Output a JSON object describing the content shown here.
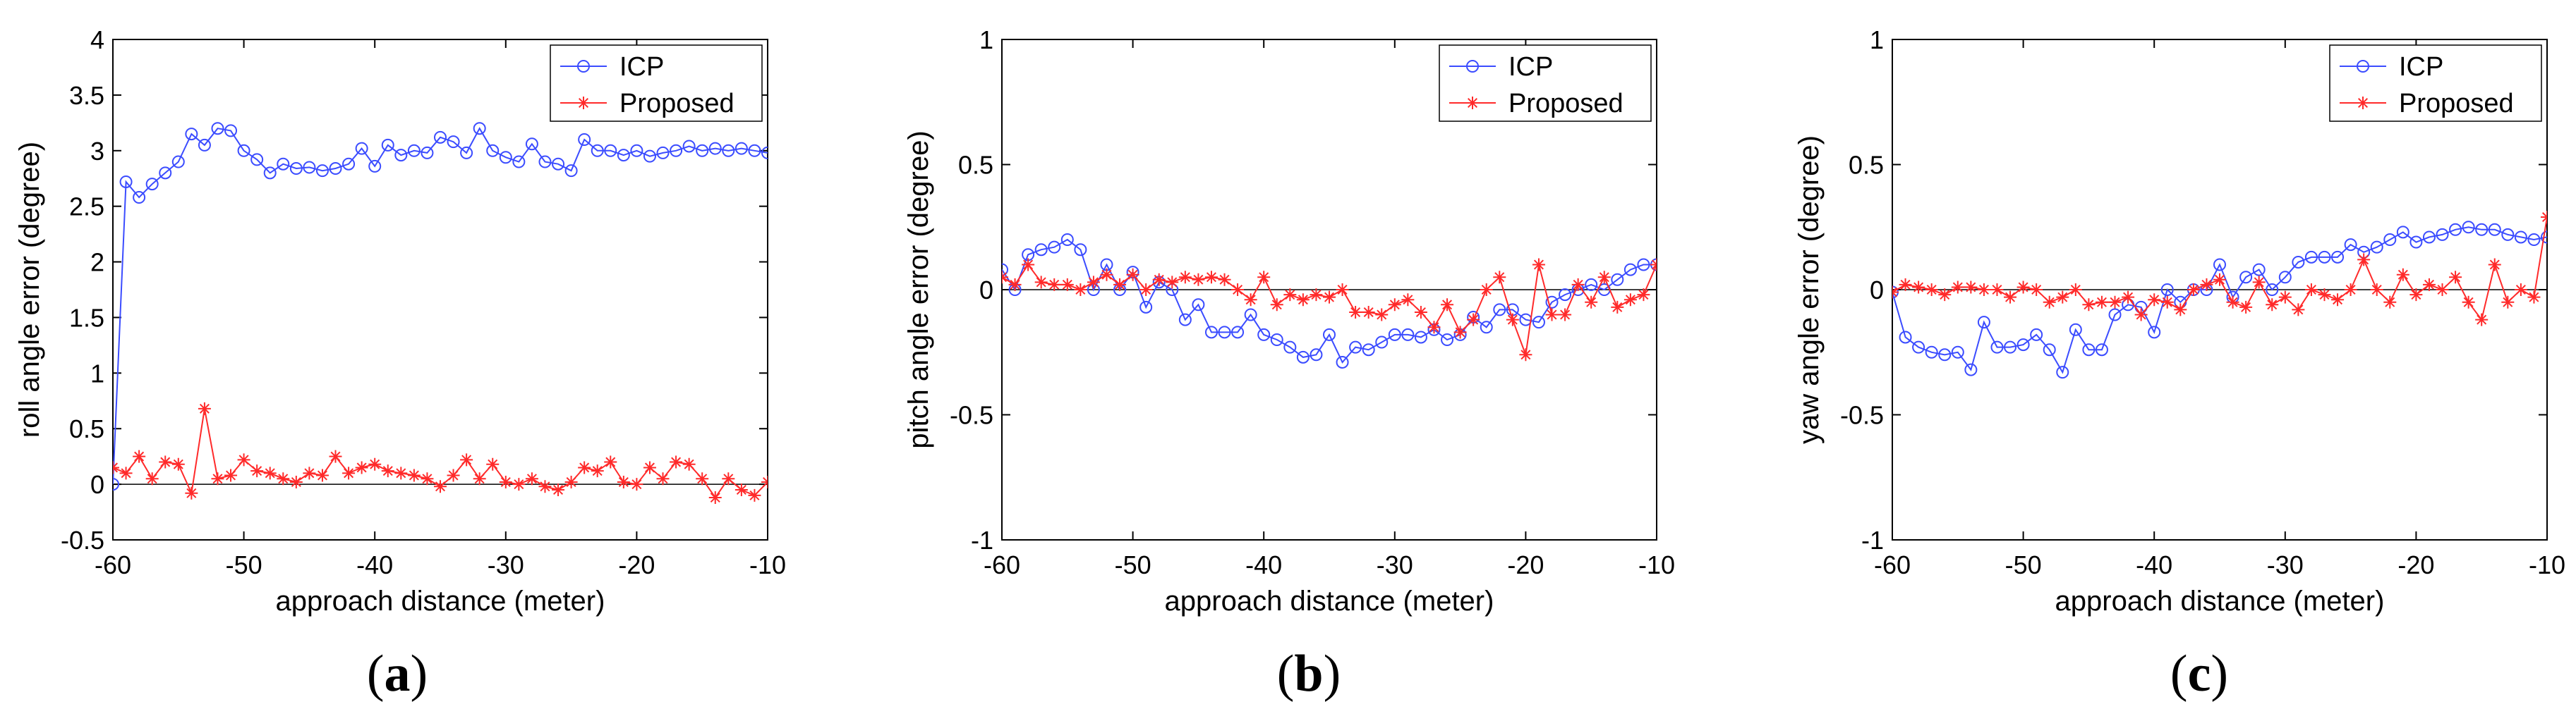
{
  "chart_data": [
    {
      "type": "line",
      "panel": "a",
      "xlabel": "approach distance (meter)",
      "ylabel": "roll angle error (degree)",
      "xlim": [
        -60,
        -10
      ],
      "ylim": [
        -0.5,
        4
      ],
      "xticks": [
        -60,
        -50,
        -40,
        -30,
        -20,
        -10
      ],
      "yticks": [
        -0.5,
        0,
        0.5,
        1,
        1.5,
        2,
        2.5,
        3,
        3.5,
        4
      ],
      "legend": "top-right",
      "zero_line": true,
      "x": [
        -60,
        -59,
        -58,
        -57,
        -56,
        -55,
        -54,
        -53,
        -52,
        -51,
        -50,
        -49,
        -48,
        -47,
        -46,
        -45,
        -44,
        -43,
        -42,
        -41,
        -40,
        -39,
        -38,
        -37,
        -36,
        -35,
        -34,
        -33,
        -32,
        -31,
        -30,
        -29,
        -28,
        -27,
        -26,
        -25,
        -24,
        -23,
        -22,
        -21,
        -20,
        -19,
        -18,
        -17,
        -16,
        -15,
        -14,
        -13,
        -12,
        -11,
        -10
      ],
      "series": [
        {
          "name": "ICP",
          "color": "#3b4cff",
          "marker": "circle",
          "values": [
            0,
            2.72,
            2.58,
            2.7,
            2.8,
            2.9,
            3.15,
            3.05,
            3.2,
            3.18,
            3.0,
            2.92,
            2.8,
            2.88,
            2.84,
            2.85,
            2.82,
            2.84,
            2.88,
            3.02,
            2.86,
            3.05,
            2.96,
            3.0,
            2.98,
            3.12,
            3.08,
            2.98,
            3.2,
            3.0,
            2.94,
            2.9,
            3.06,
            2.9,
            2.88,
            2.82,
            3.1,
            3.0,
            3.0,
            2.96,
            3.0,
            2.95,
            2.98,
            3.0,
            3.04,
            3.0,
            3.02,
            3.0,
            3.02,
            3.0,
            2.98
          ]
        },
        {
          "name": "Proposed",
          "color": "#ff2a2a",
          "marker": "star",
          "values": [
            0.15,
            0.1,
            0.25,
            0.05,
            0.2,
            0.18,
            -0.08,
            0.68,
            0.05,
            0.08,
            0.22,
            0.12,
            0.1,
            0.05,
            0.02,
            0.1,
            0.08,
            0.25,
            0.1,
            0.15,
            0.18,
            0.12,
            0.1,
            0.08,
            0.05,
            -0.02,
            0.08,
            0.22,
            0.05,
            0.18,
            0.02,
            0.0,
            0.05,
            -0.02,
            -0.05,
            0.02,
            0.15,
            0.12,
            0.2,
            0.02,
            0.0,
            0.15,
            0.05,
            0.2,
            0.18,
            0.05,
            -0.12,
            0.05,
            -0.05,
            -0.1,
            0.02
          ]
        }
      ]
    },
    {
      "type": "line",
      "panel": "b",
      "xlabel": "approach distance (meter)",
      "ylabel": "pitch angle error (degree)",
      "xlim": [
        -60,
        -10
      ],
      "ylim": [
        -1,
        1
      ],
      "xticks": [
        -60,
        -50,
        -40,
        -30,
        -20,
        -10
      ],
      "yticks": [
        -1,
        -0.5,
        0,
        0.5,
        1
      ],
      "legend": "top-right",
      "zero_line": true,
      "x": [
        -60,
        -59,
        -58,
        -57,
        -56,
        -55,
        -54,
        -53,
        -52,
        -51,
        -50,
        -49,
        -48,
        -47,
        -46,
        -45,
        -44,
        -43,
        -42,
        -41,
        -40,
        -39,
        -38,
        -37,
        -36,
        -35,
        -34,
        -33,
        -32,
        -31,
        -30,
        -29,
        -28,
        -27,
        -26,
        -25,
        -24,
        -23,
        -22,
        -21,
        -20,
        -19,
        -18,
        -17,
        -16,
        -15,
        -14,
        -13,
        -12,
        -11,
        -10
      ],
      "series": [
        {
          "name": "ICP",
          "color": "#3b4cff",
          "marker": "circle",
          "values": [
            0.08,
            0.0,
            0.14,
            0.16,
            0.17,
            0.2,
            0.16,
            0.0,
            0.1,
            0.0,
            0.07,
            -0.07,
            0.03,
            0.0,
            -0.12,
            -0.06,
            -0.17,
            -0.17,
            -0.17,
            -0.1,
            -0.18,
            -0.2,
            -0.23,
            -0.27,
            -0.26,
            -0.18,
            -0.29,
            -0.23,
            -0.24,
            -0.21,
            -0.18,
            -0.18,
            -0.19,
            -0.16,
            -0.2,
            -0.18,
            -0.11,
            -0.15,
            -0.08,
            -0.08,
            -0.12,
            -0.13,
            -0.05,
            -0.02,
            0.0,
            0.02,
            0.0,
            0.04,
            0.08,
            0.1,
            0.1
          ]
        },
        {
          "name": "Proposed",
          "color": "#ff2a2a",
          "marker": "star",
          "values": [
            0.05,
            0.02,
            0.1,
            0.03,
            0.02,
            0.02,
            0.0,
            0.03,
            0.06,
            0.02,
            0.06,
            0.0,
            0.04,
            0.03,
            0.05,
            0.04,
            0.05,
            0.04,
            0.0,
            -0.04,
            0.05,
            -0.06,
            -0.02,
            -0.04,
            -0.02,
            -0.03,
            0.0,
            -0.09,
            -0.09,
            -0.1,
            -0.06,
            -0.04,
            -0.09,
            -0.15,
            -0.06,
            -0.17,
            -0.12,
            0.0,
            0.05,
            -0.12,
            -0.26,
            0.1,
            -0.1,
            -0.1,
            0.02,
            -0.05,
            0.05,
            -0.07,
            -0.04,
            -0.02,
            0.1
          ]
        }
      ]
    },
    {
      "type": "line",
      "panel": "c",
      "xlabel": "approach distance (meter)",
      "ylabel": "yaw angle error (degree)",
      "xlim": [
        -60,
        -10
      ],
      "ylim": [
        -1,
        1
      ],
      "xticks": [
        -60,
        -50,
        -40,
        -30,
        -20,
        -10
      ],
      "yticks": [
        -1,
        -0.5,
        0,
        0.5,
        1
      ],
      "legend": "top-right",
      "zero_line": true,
      "x": [
        -60,
        -59,
        -58,
        -57,
        -56,
        -55,
        -54,
        -53,
        -52,
        -51,
        -50,
        -49,
        -48,
        -47,
        -46,
        -45,
        -44,
        -43,
        -42,
        -41,
        -40,
        -39,
        -38,
        -37,
        -36,
        -35,
        -34,
        -33,
        -32,
        -31,
        -30,
        -29,
        -28,
        -27,
        -26,
        -25,
        -24,
        -23,
        -22,
        -21,
        -20,
        -19,
        -18,
        -17,
        -16,
        -15,
        -14,
        -13,
        -12,
        -11,
        -10
      ],
      "series": [
        {
          "name": "ICP",
          "color": "#3b4cff",
          "marker": "circle",
          "values": [
            -0.01,
            -0.19,
            -0.23,
            -0.25,
            -0.26,
            -0.25,
            -0.32,
            -0.13,
            -0.23,
            -0.23,
            -0.22,
            -0.18,
            -0.24,
            -0.33,
            -0.16,
            -0.24,
            -0.24,
            -0.1,
            -0.06,
            -0.07,
            -0.17,
            0.0,
            -0.05,
            0.0,
            0.0,
            0.1,
            -0.03,
            0.05,
            0.08,
            0.0,
            0.05,
            0.11,
            0.13,
            0.13,
            0.13,
            0.18,
            0.15,
            0.17,
            0.2,
            0.23,
            0.19,
            0.21,
            0.22,
            0.24,
            0.25,
            0.24,
            0.24,
            0.22,
            0.21,
            0.2,
            0.21
          ]
        },
        {
          "name": "Proposed",
          "color": "#ff2a2a",
          "marker": "star",
          "values": [
            -0.01,
            0.02,
            0.01,
            0.0,
            -0.02,
            0.01,
            0.01,
            0.0,
            0.0,
            -0.03,
            0.01,
            0.0,
            -0.05,
            -0.03,
            0.0,
            -0.06,
            -0.05,
            -0.05,
            -0.03,
            -0.1,
            -0.04,
            -0.05,
            -0.08,
            0.0,
            0.02,
            0.04,
            -0.05,
            -0.07,
            0.03,
            -0.06,
            -0.03,
            -0.08,
            0.0,
            -0.02,
            -0.04,
            0.0,
            0.12,
            0.0,
            -0.05,
            0.06,
            -0.02,
            0.02,
            0.0,
            0.05,
            -0.05,
            -0.12,
            0.1,
            -0.05,
            0.0,
            -0.03,
            0.29
          ]
        }
      ]
    }
  ],
  "captions": [
    {
      "open": "(",
      "letter": "a",
      "close": ")"
    },
    {
      "open": "(",
      "letter": "b",
      "close": ")"
    },
    {
      "open": "(",
      "letter": "c",
      "close": ")"
    }
  ]
}
